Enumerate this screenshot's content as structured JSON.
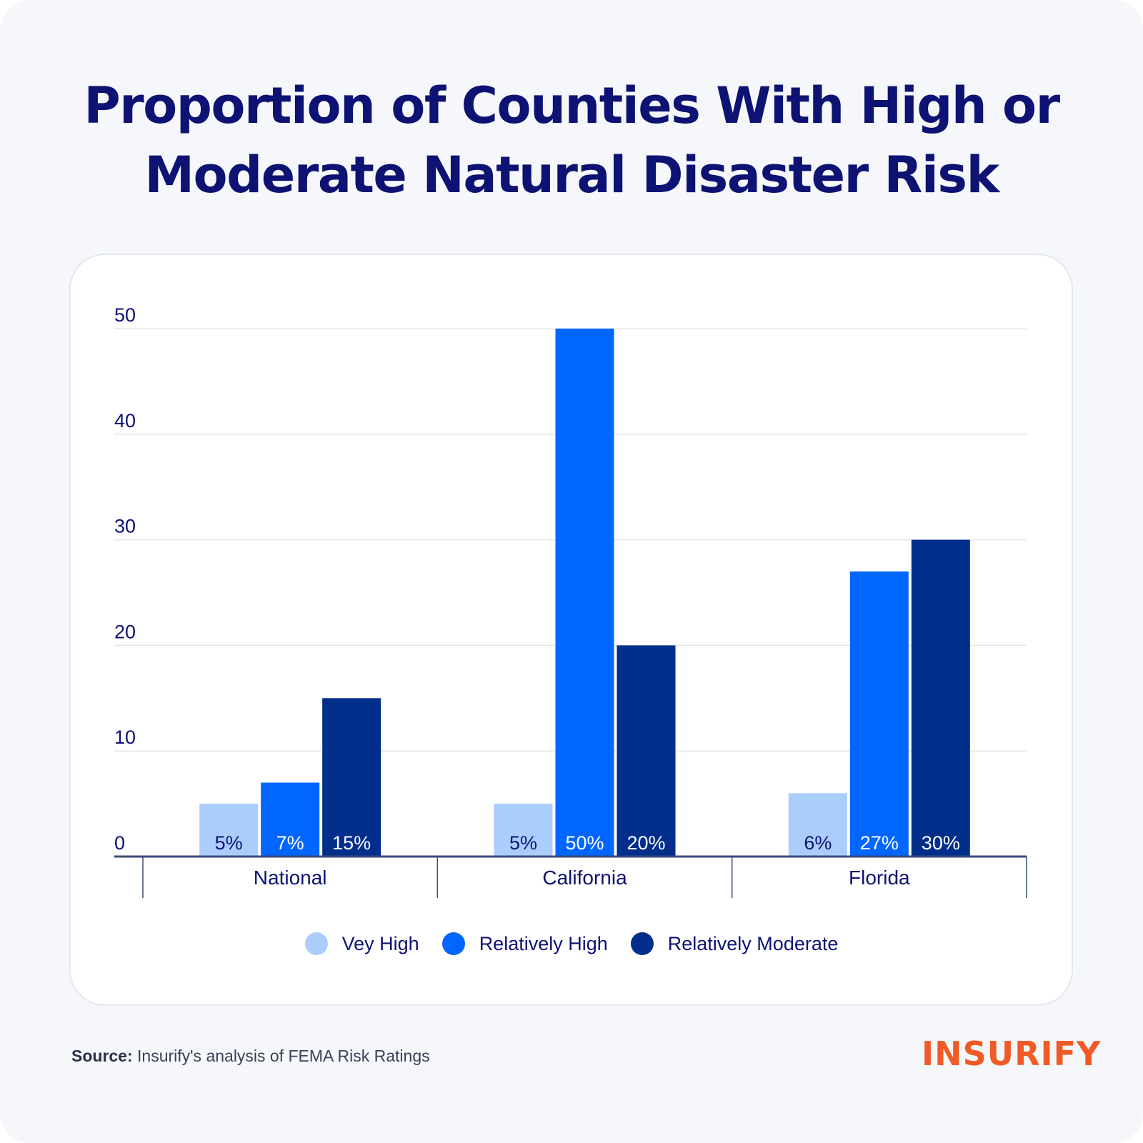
{
  "title_line1": "Proportion of Counties With High or",
  "title_line2": "Moderate Natural Disaster Risk",
  "source_label": "Source:",
  "source_text": " Insurify's analysis of FEMA Risk Ratings",
  "logo_text": "INSURIFY",
  "colors": {
    "very_high": "#abcdfc",
    "relatively_high": "#0066ff",
    "relatively_moderate": "#002e8a",
    "title": "#0d1273",
    "logo": "#f15a24"
  },
  "chart_data": {
    "type": "bar",
    "categories": [
      "National",
      "California",
      "Florida"
    ],
    "series": [
      {
        "name": "Vey High",
        "values": [
          5,
          5,
          6
        ],
        "labels": [
          "5%",
          "5%",
          "6%"
        ],
        "color": "#abcdfc"
      },
      {
        "name": "Relatively High",
        "values": [
          7,
          50,
          27
        ],
        "labels": [
          "7%",
          "50%",
          "27%"
        ],
        "color": "#0066ff"
      },
      {
        "name": "Relatively Moderate",
        "values": [
          15,
          20,
          30
        ],
        "labels": [
          "15%",
          "20%",
          "30%"
        ],
        "color": "#002e8a"
      }
    ],
    "yticks": [
      "0",
      "10",
      "20",
      "30",
      "40",
      "50"
    ],
    "ylim": [
      0,
      50
    ],
    "grid": true,
    "legend": "bottom-center",
    "xlabel": "",
    "ylabel": ""
  }
}
